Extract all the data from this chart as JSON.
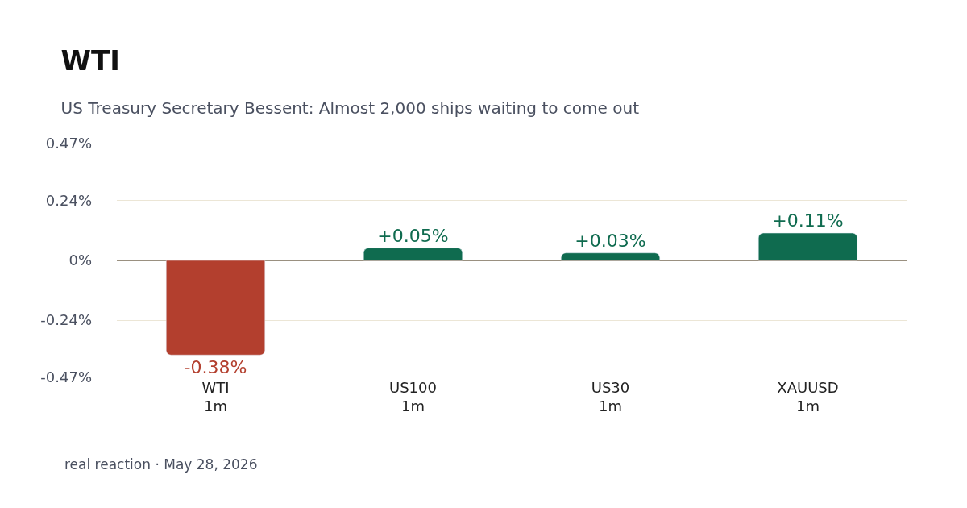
{
  "chart_data": {
    "type": "bar",
    "title": "WTI",
    "subtitle": "US Treasury Secretary Bessent: Almost 2,000 ships waiting to come out",
    "categories": [
      "WTI\n1m",
      "US100\n1m",
      "US30\n1m",
      "XAUUSD\n1m"
    ],
    "values": [
      -0.38,
      0.05,
      0.03,
      0.11
    ],
    "colors": [
      "#b33f2e",
      "#0f6b4f",
      "#0f6b4f",
      "#0f6b4f"
    ],
    "value_labels": [
      "-0.38%",
      "+0.05%",
      "+0.03%",
      "+0.11%"
    ],
    "ylim": [
      -0.47,
      0.47
    ],
    "yticks": [
      {
        "value": 0.47,
        "label": "0.47%"
      },
      {
        "value": 0.24,
        "label": "0.24%"
      },
      {
        "value": 0,
        "label": "0%"
      },
      {
        "value": -0.24,
        "label": "-0.24%"
      },
      {
        "value": -0.47,
        "label": "-0.47%"
      }
    ],
    "grid": "y",
    "legend": false,
    "annotations": [
      "real reaction · May 28, 2026"
    ]
  }
}
